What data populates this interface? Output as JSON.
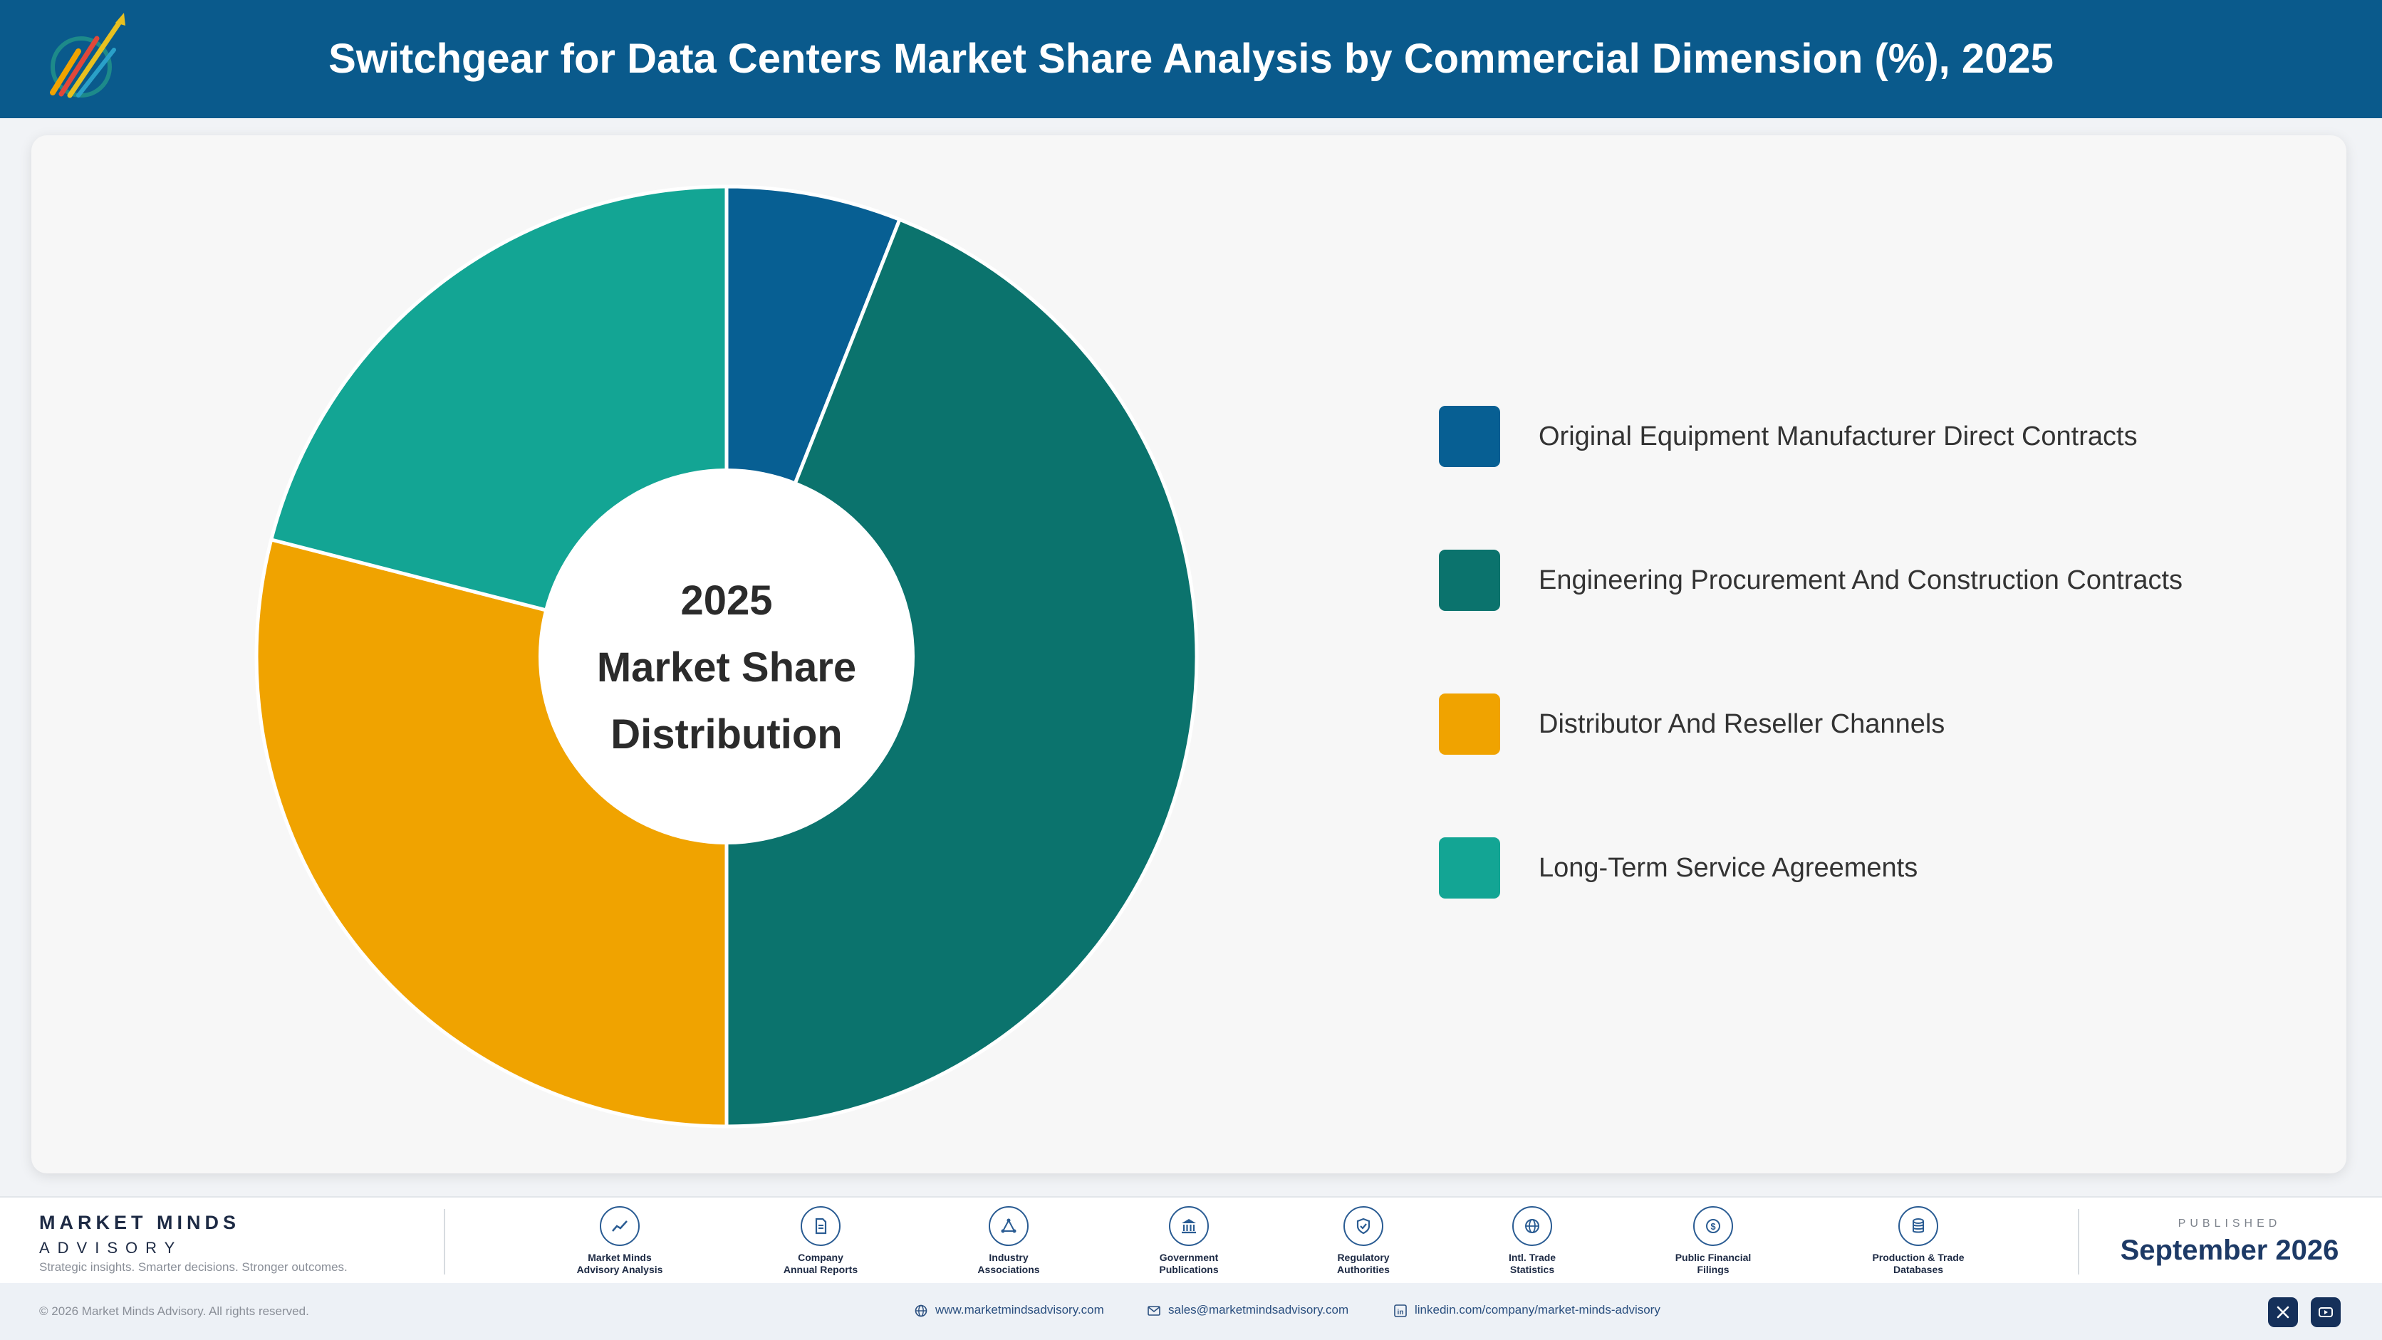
{
  "header": {
    "title": "Switchgear for Data Centers Market Share Analysis by Commercial Dimension (%), 2025",
    "logo_icon": "market-minds-logo-icon"
  },
  "chart_data": {
    "type": "pie",
    "categories": [
      "Original Equipment Manufacturer Direct Contracts",
      "Engineering Procurement And Construction Contracts",
      "Distributor And Reseller Channels",
      "Long-Term Service Agreements"
    ],
    "values": [
      6,
      44,
      29,
      21
    ],
    "colors": [
      "#075f93",
      "#0b736d",
      "#f0a300",
      "#13a594"
    ],
    "center_label": [
      "2025",
      "Market Share",
      "Distribution"
    ],
    "legend_position": "right",
    "donut": true
  },
  "footer": {
    "brand_name": "MARKET MINDS",
    "brand_sub": "ADVISORY",
    "brand_tagline": "Strategic insights. Smarter decisions. Stronger outcomes.",
    "sources": [
      {
        "line1": "Market Minds",
        "line2": "Advisory Analysis",
        "icon": "trend-chart-icon"
      },
      {
        "line1": "Company",
        "line2": "Annual Reports",
        "icon": "document-icon"
      },
      {
        "line1": "Industry",
        "line2": "Associations",
        "icon": "network-icon"
      },
      {
        "line1": "Government",
        "line2": "Publications",
        "icon": "government-building-icon"
      },
      {
        "line1": "Regulatory",
        "line2": "Authorities",
        "icon": "shield-check-icon"
      },
      {
        "line1": "Intl. Trade",
        "line2": "Statistics",
        "icon": "globe-icon"
      },
      {
        "line1": "Public Financial",
        "line2": "Filings",
        "icon": "dollar-coin-icon"
      },
      {
        "line1": "Production & Trade",
        "line2": "Databases",
        "icon": "database-icon"
      }
    ],
    "published_label": "PUBLISHED",
    "published_date": "September 2026"
  },
  "bottom_bar": {
    "copyright": "© 2026 Market Minds Advisory. All rights reserved.",
    "website": "www.marketmindsadvisory.com",
    "email": "sales@marketmindsadvisory.com",
    "linkedin": "linkedin.com/company/market-minds-advisory",
    "social_icons": [
      "x-icon",
      "youtube-icon"
    ]
  }
}
